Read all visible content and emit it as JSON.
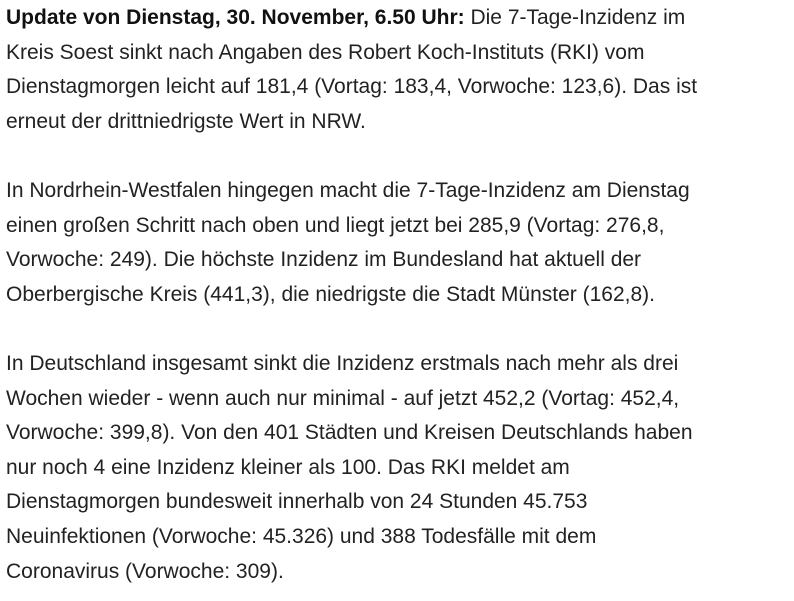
{
  "article": {
    "update_label": "Update von Dienstag, 30. November, 6.50 Uhr:",
    "paragraph_1": {
      "lines": [
        " Die 7-Tage-Inzidenz im",
        "Kreis Soest sinkt nach Angaben des Robert Koch-Instituts (RKI) vom",
        "Dienstagmorgen leicht auf 181,4 (Vortag: 183,4, Vorwoche: 123,6). Das ist",
        "erneut der drittniedrigste Wert in NRW."
      ]
    },
    "paragraph_2": {
      "lines": [
        "In Nordrhein-Westfalen hingegen macht die 7-Tage-Inzidenz am Dienstag",
        "einen großen Schritt nach oben und liegt jetzt bei 285,9 (Vortag: 276,8,",
        "Vorwoche: 249). Die höchste Inzidenz im Bundesland hat aktuell der",
        "Oberbergische Kreis (441,3), die niedrigste die Stadt Münster (162,8)."
      ]
    },
    "paragraph_3": {
      "lines": [
        "In Deutschland insgesamt sinkt die Inzidenz erstmals nach mehr als drei",
        "Wochen wieder - wenn auch nur minimal - auf jetzt 452,2 (Vortag: 452,4,",
        "Vorwoche: 399,8). Von den 401 Städten und Kreisen Deutschlands haben",
        "nur noch 4 eine Inzidenz kleiner als 100. Das RKI meldet am",
        "Dienstagmorgen bundesweit innerhalb von 24 Stunden 45.753",
        "Neuinfektionen (Vorwoche: 45.326) und 388 Todesfälle mit dem",
        "Coronavirus (Vorwoche: 309)."
      ]
    }
  }
}
